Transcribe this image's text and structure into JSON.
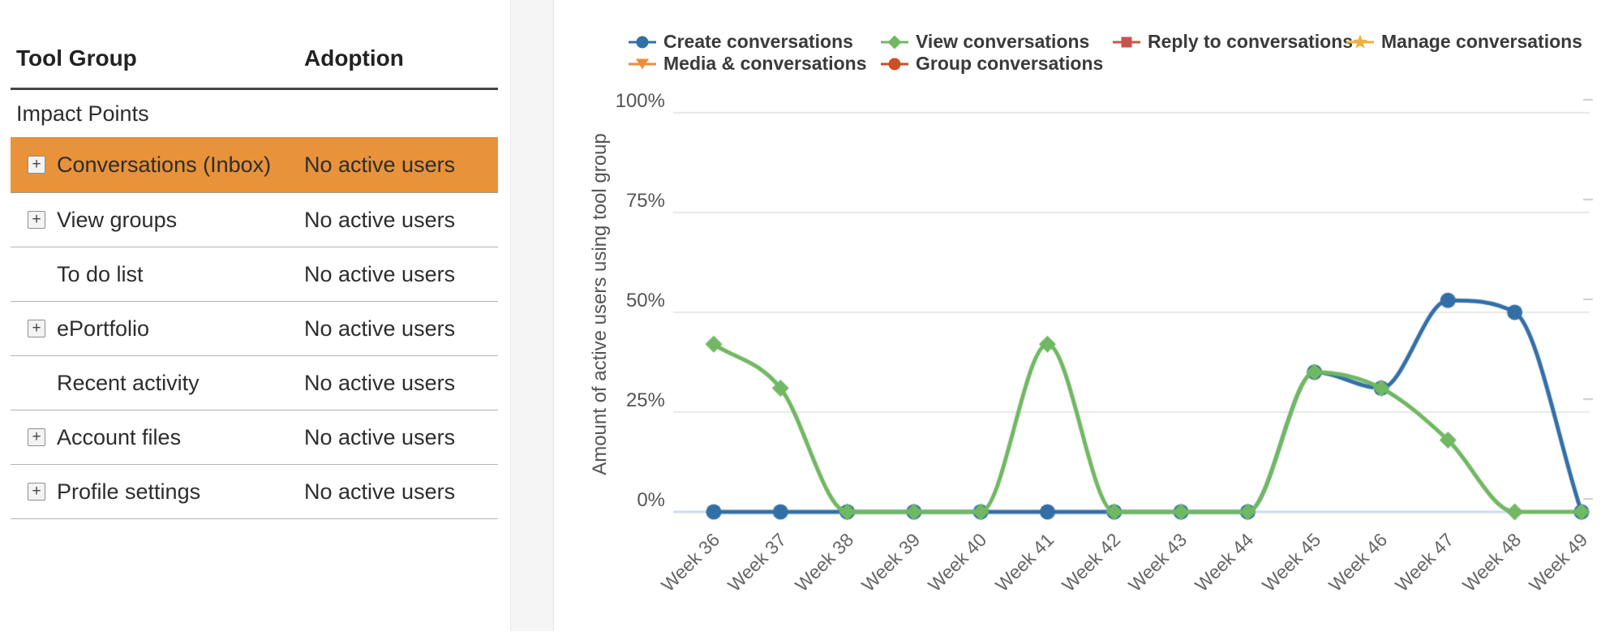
{
  "table": {
    "headers": [
      "Tool Group",
      "Adoption"
    ],
    "selected_color": "#e8923a",
    "rows": [
      {
        "label": "Impact Points",
        "adoption": "",
        "expandable": false,
        "indent": false,
        "selected": false
      },
      {
        "label": "Conversations (Inbox)",
        "adoption": "No active users",
        "expandable": true,
        "indent": true,
        "selected": true
      },
      {
        "label": "View groups",
        "adoption": "No active users",
        "expandable": true,
        "indent": true,
        "selected": false
      },
      {
        "label": "To do list",
        "adoption": "No active users",
        "expandable": false,
        "indent": true,
        "selected": false
      },
      {
        "label": "ePortfolio",
        "adoption": "No active users",
        "expandable": true,
        "indent": true,
        "selected": false
      },
      {
        "label": "Recent activity",
        "adoption": "No active users",
        "expandable": false,
        "indent": true,
        "selected": false
      },
      {
        "label": "Account files",
        "adoption": "No active users",
        "expandable": true,
        "indent": true,
        "selected": false
      },
      {
        "label": "Profile settings",
        "adoption": "No active users",
        "expandable": true,
        "indent": true,
        "selected": false
      }
    ],
    "expander_glyph": "+"
  },
  "chart_data": {
    "type": "line",
    "title": "",
    "ylabel": "Amount of active users using tool group",
    "xlabel": "",
    "ylim": [
      0,
      100
    ],
    "y_ticks": [
      100,
      75,
      50,
      25,
      0
    ],
    "y_tick_suffix": "%",
    "grid": true,
    "legend_position": "top",
    "axis_line_color": "#ccd9ee",
    "gridline_color": "#e7e7e7",
    "x_categories": [
      "Week 36",
      "Week 37",
      "Week 38",
      "Week 39",
      "Week 40",
      "Week 41",
      "Week 42",
      "Week 43",
      "Week 44",
      "Week 45",
      "Week 46",
      "Week 47",
      "Week 48",
      "Week 49"
    ],
    "series": [
      {
        "name": "Create conversations",
        "color": "#336fa7",
        "marker": "circle",
        "values": [
          0,
          0,
          0,
          0,
          0,
          0,
          0,
          0,
          0,
          35,
          31,
          53,
          50,
          0
        ]
      },
      {
        "name": "View conversations",
        "color": "#70b862",
        "marker": "diamond",
        "values": [
          42,
          31,
          0,
          0,
          0,
          42,
          0,
          0,
          0,
          35,
          31,
          18,
          0,
          0
        ]
      },
      {
        "name": "Reply to conversations",
        "color": "#c9544d",
        "marker": "square",
        "values": []
      },
      {
        "name": "Manage conversations",
        "color": "#efb041",
        "marker": "star",
        "values": []
      },
      {
        "name": "Media & conversations",
        "color": "#ef8c3a",
        "marker": "triangle-down",
        "values": []
      },
      {
        "name": "Group conversations",
        "color": "#cf4e22",
        "marker": "circle",
        "values": []
      }
    ]
  }
}
